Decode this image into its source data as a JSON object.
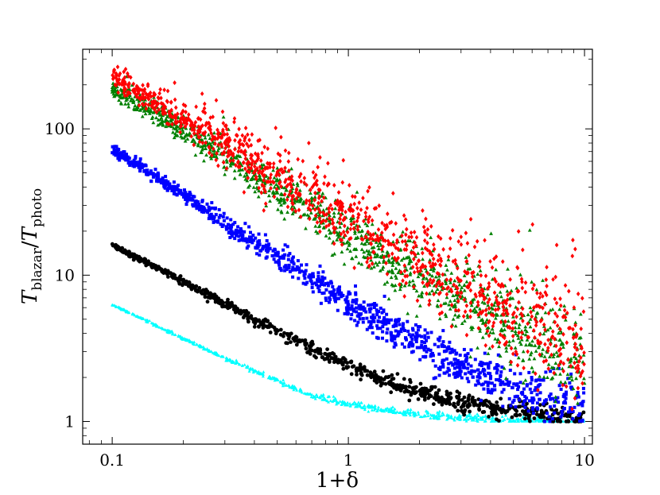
{
  "chart_data": {
    "type": "scatter",
    "title": "",
    "xscale": "log",
    "yscale": "log",
    "xlim": [
      0.075,
      10.8
    ],
    "ylim": [
      0.7,
      350
    ],
    "xticks": [
      0.1,
      1,
      10
    ],
    "xtick_labels": [
      "0.1",
      "1",
      "10"
    ],
    "yticks": [
      1,
      10,
      100
    ],
    "ytick_labels": [
      "1",
      "10",
      "100"
    ],
    "xlabel": "1+δ",
    "ylabel": {
      "base": "T",
      "sub_num": "blazar",
      "sub_den": "photo"
    },
    "grid": false,
    "legend": "none",
    "series": [
      {
        "color": "#00ffff",
        "marker": "triangle",
        "x": [
          0.1,
          0.15,
          0.2,
          0.3,
          0.5,
          0.7,
          1.0,
          1.5,
          2.0,
          3.0,
          5.0,
          7.0,
          10.0
        ],
        "y": [
          6.3,
          4.6,
          3.7,
          2.7,
          1.9,
          1.5,
          1.32,
          1.18,
          1.12,
          1.06,
          1.02,
          1.01,
          1.0
        ]
      },
      {
        "color": "#000000",
        "marker": "circle",
        "x": [
          0.1,
          0.15,
          0.2,
          0.3,
          0.5,
          0.7,
          1.0,
          1.5,
          2.0,
          3.0,
          5.0,
          7.0,
          10.0
        ],
        "y": [
          16.0,
          11.5,
          9.0,
          6.4,
          4.1,
          3.2,
          2.4,
          1.85,
          1.6,
          1.35,
          1.18,
          1.1,
          1.05
        ]
      },
      {
        "color": "#0000ff",
        "marker": "square",
        "x": [
          0.1,
          0.15,
          0.2,
          0.3,
          0.5,
          0.7,
          1.0,
          1.5,
          2.0,
          3.0,
          5.0,
          7.0,
          10.0
        ],
        "y": [
          72.0,
          48.0,
          36.0,
          23.0,
          13.5,
          9.5,
          6.5,
          4.4,
          3.4,
          2.4,
          1.75,
          1.45,
          1.25
        ]
      },
      {
        "color": "#008000",
        "marker": "triangle",
        "x": [
          0.1,
          0.15,
          0.2,
          0.3,
          0.5,
          0.7,
          1.0,
          1.5,
          2.0,
          3.0,
          5.0,
          7.0,
          10.0
        ],
        "y": [
          190.0,
          130.0,
          98.0,
          64.0,
          38.0,
          28.0,
          19.0,
          13.0,
          9.8,
          6.8,
          4.4,
          3.3,
          2.5
        ]
      },
      {
        "color": "#ff0000",
        "marker": "diamond",
        "x": [
          0.1,
          0.15,
          0.2,
          0.3,
          0.5,
          0.7,
          1.0,
          1.5,
          2.0,
          3.0,
          5.0,
          7.0,
          10.0
        ],
        "y": [
          225.0,
          155.0,
          118.0,
          78.0,
          47.0,
          34.0,
          24.0,
          16.0,
          12.5,
          8.6,
          5.6,
          4.3,
          3.3
        ]
      }
    ]
  }
}
